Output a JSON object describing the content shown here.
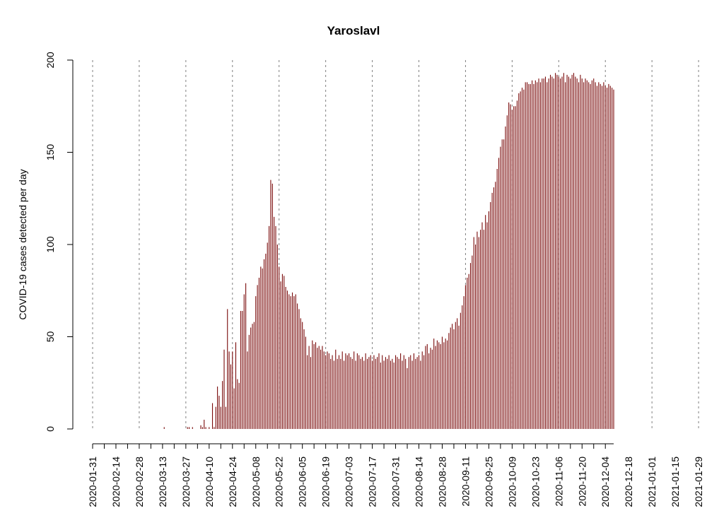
{
  "chart_data": {
    "type": "bar",
    "title": "Yaroslavl",
    "xlabel": "",
    "ylabel": "COVID-19 cases detected per day",
    "ylim": [
      0,
      200
    ],
    "y_ticks": [
      0,
      50,
      100,
      150,
      200
    ],
    "x_start": "2020-01-31",
    "x_end": "2021-01-29",
    "x_tick_labels": [
      "2020-01-31",
      "2020-02-14",
      "2020-02-28",
      "2020-03-13",
      "2020-03-27",
      "2020-04-10",
      "2020-04-24",
      "2020-05-08",
      "2020-05-22",
      "2020-06-05",
      "2020-06-19",
      "2020-07-03",
      "2020-07-17",
      "2020-07-31",
      "2020-08-14",
      "2020-08-28",
      "2020-09-11",
      "2020-09-25",
      "2020-10-09",
      "2020-10-23",
      "2020-11-06",
      "2020-11-20",
      "2020-12-04",
      "2020-12-18",
      "2021-01-01",
      "2021-01-15",
      "2021-01-29"
    ],
    "grid": "vertical dashed lines every 4 weeks",
    "grid_dates": [
      "2020-01-31",
      "2020-02-28",
      "2020-03-27",
      "2020-04-24",
      "2020-05-22",
      "2020-06-19",
      "2020-07-17",
      "2020-08-14",
      "2020-09-11",
      "2020-10-09",
      "2020-11-06",
      "2020-12-04",
      "2021-01-01",
      "2021-01-29"
    ],
    "bar_color": "#800000",
    "series": [
      {
        "values": [
          0,
          0,
          0,
          0,
          0,
          0,
          0,
          0,
          0,
          0,
          0,
          0,
          0,
          0,
          0,
          0,
          0,
          0,
          0,
          0,
          0,
          0,
          0,
          0,
          0,
          0,
          0,
          0,
          0,
          0,
          0,
          0,
          0,
          0,
          0,
          0,
          0,
          0,
          0,
          0,
          0,
          0,
          0,
          1,
          0,
          0,
          0,
          0,
          0,
          0,
          0,
          0,
          0,
          0,
          0,
          0,
          0,
          1,
          1,
          0,
          1,
          0,
          0,
          0,
          0,
          2,
          1,
          5,
          1,
          0,
          1,
          0,
          14,
          1,
          12,
          23,
          18,
          12,
          26,
          43,
          12,
          65,
          42,
          35,
          42,
          22,
          47,
          27,
          25,
          64,
          64,
          73,
          79,
          42,
          51,
          55,
          57,
          58,
          72,
          78,
          82,
          88,
          87,
          92,
          95,
          101,
          110,
          135,
          133,
          115,
          110,
          100,
          88,
          80,
          84,
          83,
          77,
          75,
          73,
          72,
          74,
          72,
          73,
          68,
          65,
          60,
          58,
          54,
          50,
          40,
          45,
          39,
          48,
          46,
          47,
          44,
          45,
          43,
          45,
          42,
          40,
          42,
          41,
          38,
          40,
          37,
          43,
          38,
          40,
          38,
          42,
          37,
          41,
          40,
          41,
          39,
          38,
          42,
          37,
          41,
          40,
          38,
          39,
          37,
          41,
          38,
          39,
          40,
          37,
          40,
          38,
          39,
          41,
          36,
          40,
          37,
          39,
          38,
          40,
          37,
          38,
          36,
          40,
          39,
          38,
          41,
          37,
          40,
          38,
          33,
          39,
          40,
          37,
          41,
          38,
          39,
          40,
          37,
          42,
          40,
          45,
          46,
          41,
          44,
          43,
          49,
          45,
          48,
          47,
          46,
          50,
          47,
          49,
          48,
          52,
          55,
          57,
          54,
          58,
          60,
          56,
          63,
          67,
          72,
          78,
          82,
          84,
          90,
          94,
          104,
          100,
          107,
          104,
          108,
          112,
          108,
          116,
          112,
          118,
          123,
          128,
          131,
          134,
          141,
          147,
          153,
          157,
          157,
          164,
          170,
          177,
          176,
          173,
          175,
          175,
          178,
          182,
          183,
          185,
          184,
          188,
          188,
          187,
          187,
          189,
          187,
          189,
          188,
          190,
          188,
          190,
          190,
          191,
          188,
          190,
          192,
          191,
          190,
          193,
          192,
          191,
          190,
          191,
          193,
          188,
          192,
          191,
          190,
          192,
          193,
          191,
          190,
          188,
          192,
          190,
          188,
          190,
          189,
          188,
          187,
          189,
          190,
          188,
          186,
          188,
          187,
          186,
          188,
          186,
          185,
          187,
          186,
          185,
          184
        ]
      }
    ]
  }
}
